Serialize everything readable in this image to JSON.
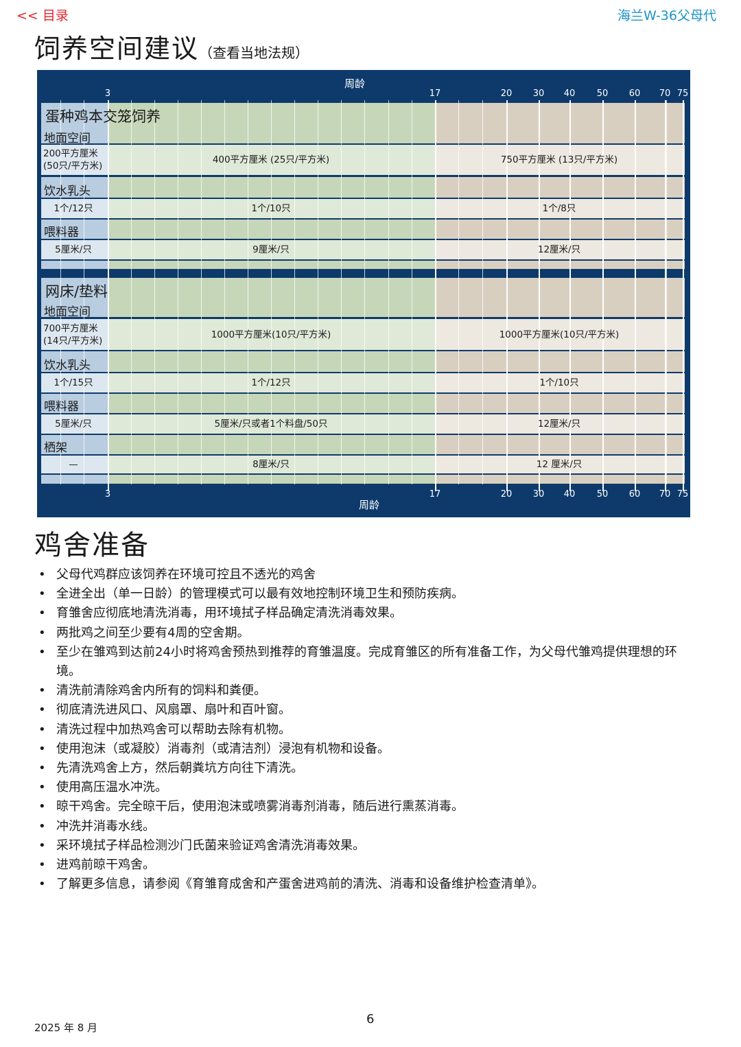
{
  "header": {
    "toc_link": "<< 目录",
    "brand": "海兰W-36父母代"
  },
  "title1": "饲养空间建议",
  "title1_note": "（查看当地法规）",
  "chart_data": {
    "type": "table",
    "axis_label": "周龄",
    "ticks": [
      "3",
      "17",
      "20",
      "30",
      "40",
      "50",
      "60",
      "70",
      "75"
    ],
    "colors": {
      "frame": "#0d3a6b",
      "phase1": "#b9cde0",
      "phase2": "#c6d7b9",
      "phase3": "#d9cfc1"
    },
    "sections": [
      {
        "title": "蛋种鸡本交笼饲养",
        "rows": [
          {
            "label": "地面空间",
            "values": [
              "200平方厘米\n(50只/平方米)",
              "400平方厘米 (25只/平方米)",
              "750平方厘米 (13只/平方米)"
            ]
          },
          {
            "label": "饮水乳头",
            "values": [
              "1个/12只",
              "1个/10只",
              "1个/8只"
            ]
          },
          {
            "label": "喂料器",
            "values": [
              "5厘米/只",
              "9厘米/只",
              "12厘米/只"
            ]
          }
        ]
      },
      {
        "title": "网床/垫料",
        "rows": [
          {
            "label": "地面空间",
            "values": [
              "700平方厘米\n(14只/平方米)",
              "1000平方厘米(10只/平方米)",
              "1000平方厘米(10只/平方米)"
            ]
          },
          {
            "label": "饮水乳头",
            "values": [
              "1个/15只",
              "1个/12只",
              "1个/10只"
            ]
          },
          {
            "label": "喂料器",
            "values": [
              "5厘米/只",
              "5厘米/只或者1个料盘/50只",
              "12厘米/只"
            ]
          },
          {
            "label": "栖架",
            "values": [
              "—",
              "8厘米/只",
              "12 厘米/只"
            ]
          }
        ]
      }
    ]
  },
  "title2": "鸡舍准备",
  "bullets": [
    "父母代鸡群应该饲养在环境可控且不透光的鸡舍",
    "全进全出（单一日龄）的管理模式可以最有效地控制环境卫生和预防疾病。",
    "育雏舍应彻底地清洗消毒，用环境拭子样品确定清洗消毒效果。",
    "两批鸡之间至少要有4周的空舍期。",
    "至少在雏鸡到达前24小时将鸡舍预热到推荐的育雏温度。完成育雏区的所有准备工作，为父母代雏鸡提供理想的环境。",
    "清洗前清除鸡舍内所有的饲料和粪便。",
    "彻底清洗进风口、风扇罩、扇叶和百叶窗。",
    "清洗过程中加热鸡舍可以帮助去除有机物。",
    "使用泡沫（或凝胶）消毒剂（或清洁剂）浸泡有机物和设备。",
    "先清洗鸡舍上方，然后朝粪坑方向往下清洗。",
    "使用高压温水冲洗。",
    "晾干鸡舍。完全晾干后，使用泡沫或喷雾消毒剂消毒，随后进行熏蒸消毒。",
    "冲洗并消毒水线。",
    "采环境拭子样品检测沙门氏菌来验证鸡舍清洗消毒效果。",
    "进鸡前晾干鸡舍。",
    "了解更多信息，请参阅《育雏育成舍和产蛋舍进鸡前的清洗、消毒和设备维护检查清单》。"
  ],
  "footer": {
    "date": "2025 年 8 月",
    "page": "6"
  }
}
